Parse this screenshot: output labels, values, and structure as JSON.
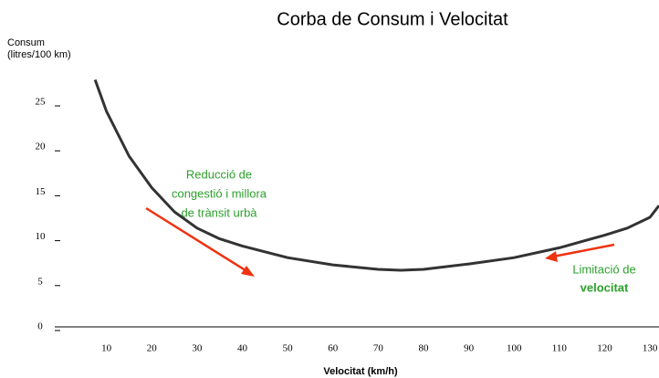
{
  "chart_data": {
    "type": "line",
    "title": "Corba de Consum i Velocitat",
    "y_label": [
      "Consum",
      "(litres/100 km)"
    ],
    "x_label": "Velocitat (km/h)",
    "x": [
      7.5,
      10,
      15,
      20,
      25,
      30,
      35,
      40,
      50,
      60,
      70,
      75,
      80,
      90,
      100,
      110,
      120,
      125,
      130,
      132
    ],
    "series": [
      {
        "name": "Consum",
        "color": "#333333",
        "values": [
          27.5,
          24,
          19,
          15.5,
          12.8,
          11,
          9.8,
          9,
          7.7,
          6.9,
          6.4,
          6.3,
          6.4,
          7,
          7.7,
          8.8,
          10.2,
          11,
          12.2,
          13.5
        ]
      }
    ],
    "xlim": [
      0,
      132
    ],
    "ylim": [
      0,
      27.5
    ],
    "xticks": [
      10,
      20,
      30,
      40,
      50,
      60,
      70,
      80,
      90,
      100,
      110,
      120,
      130
    ],
    "yticks": [
      0,
      5,
      10,
      15,
      20,
      25
    ],
    "annotations": [
      {
        "lines": [
          "Reducció de",
          "congestió i millora",
          "de trànsit urbà"
        ],
        "color": "#2ca02c"
      },
      {
        "lines": [
          "Limitació de",
          "velocitat"
        ],
        "color": "#2ca02c"
      }
    ]
  }
}
